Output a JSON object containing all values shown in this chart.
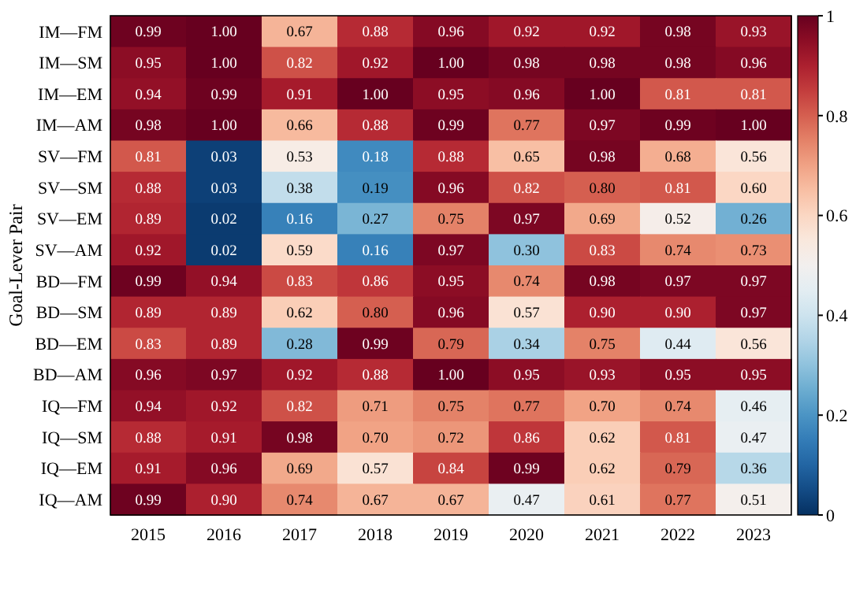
{
  "chart_data": {
    "type": "heatmap",
    "ylabel": "Goal-Lever Pair",
    "categories": [
      "2015",
      "2016",
      "2017",
      "2018",
      "2019",
      "2020",
      "2021",
      "2022",
      "2023"
    ],
    "y_categories": [
      "IM—FM",
      "IM—SM",
      "IM—EM",
      "IM—AM",
      "SV—FM",
      "SV—SM",
      "SV—EM",
      "SV—AM",
      "BD—FM",
      "BD—SM",
      "BD—EM",
      "BD—AM",
      "IQ—FM",
      "IQ—SM",
      "IQ—EM",
      "IQ—AM"
    ],
    "cells": [
      [
        0.99,
        1,
        0.67,
        0.88,
        0.96,
        0.92,
        0.92,
        0.98,
        0.93
      ],
      [
        0.95,
        1,
        0.82,
        0.92,
        1,
        0.98,
        0.98,
        0.98,
        0.96
      ],
      [
        0.94,
        0.99,
        0.91,
        1,
        0.95,
        0.96,
        1,
        0.81,
        0.81
      ],
      [
        0.98,
        1,
        0.66,
        0.88,
        0.99,
        0.77,
        0.97,
        0.99,
        1
      ],
      [
        0.81,
        0.03,
        0.53,
        0.18,
        0.88,
        0.65,
        0.98,
        0.68,
        0.56
      ],
      [
        0.88,
        0.03,
        0.38,
        0.19,
        0.96,
        0.82,
        0.8,
        0.81,
        0.6
      ],
      [
        0.89,
        0.02,
        0.16,
        0.27,
        0.75,
        0.97,
        0.69,
        0.52,
        0.26
      ],
      [
        0.92,
        0.02,
        0.59,
        0.16,
        0.97,
        0.3,
        0.83,
        0.74,
        0.73
      ],
      [
        0.99,
        0.94,
        0.83,
        0.86,
        0.95,
        0.74,
        0.98,
        0.97,
        0.97
      ],
      [
        0.89,
        0.89,
        0.62,
        0.8,
        0.96,
        0.57,
        0.9,
        0.9,
        0.97
      ],
      [
        0.83,
        0.89,
        0.28,
        0.99,
        0.79,
        0.34,
        0.75,
        0.44,
        0.56
      ],
      [
        0.96,
        0.97,
        0.92,
        0.88,
        1,
        0.95,
        0.93,
        0.95,
        0.95
      ],
      [
        0.94,
        0.92,
        0.82,
        0.71,
        0.75,
        0.77,
        0.7,
        0.74,
        0.46
      ],
      [
        0.88,
        0.91,
        0.98,
        0.7,
        0.72,
        0.86,
        0.62,
        0.81,
        0.47
      ],
      [
        0.91,
        0.96,
        0.69,
        0.57,
        0.84,
        0.99,
        0.62,
        0.79,
        0.36
      ],
      [
        0.99,
        0.9,
        0.74,
        0.67,
        0.67,
        0.47,
        0.61,
        0.77,
        0.51
      ]
    ],
    "cell_labels": [
      [
        "0.99",
        "1.00",
        "0.67",
        "0.88",
        "0.96",
        "0.92",
        "0.92",
        "0.98",
        "0.93"
      ],
      [
        "0.95",
        "1.00",
        "0.82",
        "0.92",
        "1.00",
        "0.98",
        "0.98",
        "0.98",
        "0.96"
      ],
      [
        "0.94",
        "0.99",
        "0.91",
        "1.00",
        "0.95",
        "0.96",
        "1.00",
        "0.81",
        "0.81"
      ],
      [
        "0.98",
        "1.00",
        "0.66",
        "0.88",
        "0.99",
        "0.77",
        "0.97",
        "0.99",
        "1.00"
      ],
      [
        "0.81",
        "0.03",
        "0.53",
        "0.18",
        "0.88",
        "0.65",
        "0.98",
        "0.68",
        "0.56"
      ],
      [
        "0.88",
        "0.03",
        "0.38",
        "0.19",
        "0.96",
        "0.82",
        "0.80",
        "0.81",
        "0.60"
      ],
      [
        "0.89",
        "0.02",
        "0.16",
        "0.27",
        "0.75",
        "0.97",
        "0.69",
        "0.52",
        "0.26"
      ],
      [
        "0.92",
        "0.02",
        "0.59",
        "0.16",
        "0.97",
        "0.30",
        "0.83",
        "0.74",
        "0.73"
      ],
      [
        "0.99",
        "0.94",
        "0.83",
        "0.86",
        "0.95",
        "0.74",
        "0.98",
        "0.97",
        "0.97"
      ],
      [
        "0.89",
        "0.89",
        "0.62",
        "0.80",
        "0.96",
        "0.57",
        "0.90",
        "0.90",
        "0.97"
      ],
      [
        "0.83",
        "0.89",
        "0.28",
        "0.99",
        "0.79",
        "0.34",
        "0.75",
        "0.44",
        "0.56"
      ],
      [
        "0.96",
        "0.97",
        "0.92",
        "0.88",
        "1.00",
        "0.95",
        "0.93",
        "0.95",
        "0.95"
      ],
      [
        "0.94",
        "0.92",
        "0.82",
        "0.71",
        "0.75",
        "0.77",
        "0.70",
        "0.74",
        "0.46"
      ],
      [
        "0.88",
        "0.91",
        "0.98",
        "0.70",
        "0.72",
        "0.86",
        "0.62",
        "0.81",
        "0.47"
      ],
      [
        "0.91",
        "0.96",
        "0.69",
        "0.57",
        "0.84",
        "0.99",
        "0.62",
        "0.79",
        "0.36"
      ],
      [
        "0.99",
        "0.90",
        "0.74",
        "0.67",
        "0.67",
        "0.47",
        "0.61",
        "0.77",
        "0.51"
      ]
    ],
    "clim": [
      0,
      1
    ],
    "cticks": [
      0,
      0.2,
      0.4,
      0.6,
      0.8,
      1
    ]
  }
}
